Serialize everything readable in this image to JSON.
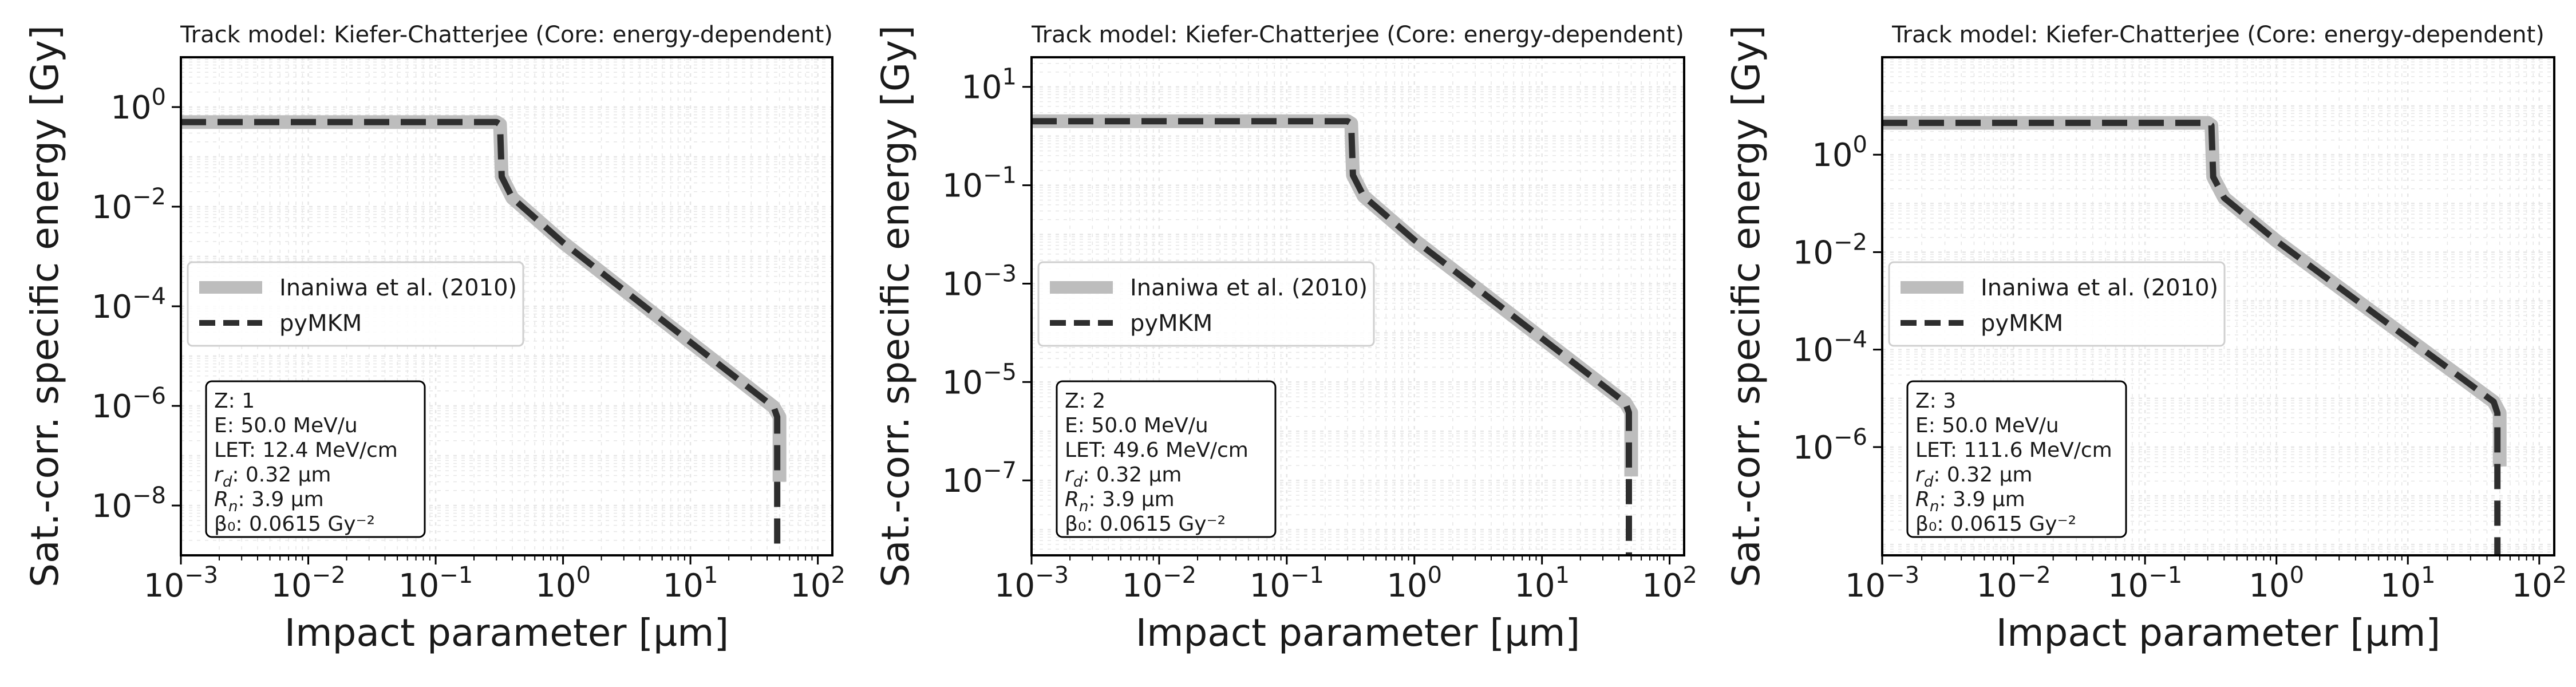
{
  "figure": {
    "xlabel": "Impact parameter [µm]",
    "ylabel": "Sat.-corr. specific energy [Gy]"
  },
  "colors": {
    "reference_line": "#bdbdbd",
    "pymkm_line": "#2e2e2e",
    "grid": "#e6e6e6",
    "axes": "#000000",
    "legend_border": "#cfcfcf",
    "info_border": "#000000"
  },
  "chart_data": [
    {
      "type": "line",
      "title": "Track model: Kiefer-Chatterjee (Core: energy-dependent)",
      "xlabel": "Impact parameter [µm]",
      "ylabel": "Sat.-corr. specific energy [Gy]",
      "xscale": "log",
      "yscale": "log",
      "xlim": [
        0.001,
        130
      ],
      "ylim": [
        1e-09,
        10
      ],
      "xticks": [
        {
          "value": 0.001,
          "base": "10",
          "exp": "−3"
        },
        {
          "value": 0.01,
          "base": "10",
          "exp": "−2"
        },
        {
          "value": 0.1,
          "base": "10",
          "exp": "−1"
        },
        {
          "value": 1,
          "base": "10",
          "exp": "0"
        },
        {
          "value": 10,
          "base": "10",
          "exp": "1"
        },
        {
          "value": 100,
          "base": "10",
          "exp": "2"
        }
      ],
      "yticks": [
        {
          "value": 1,
          "base": "10",
          "exp": "0"
        },
        {
          "value": 0.01,
          "base": "10",
          "exp": "−2"
        },
        {
          "value": 0.0001,
          "base": "10",
          "exp": "−4"
        },
        {
          "value": 1e-06,
          "base": "10",
          "exp": "−6"
        },
        {
          "value": 1e-08,
          "base": "10",
          "exp": "−8"
        }
      ],
      "grid": true,
      "legend_position": "center-left",
      "series": [
        {
          "name": "Inaniwa et al. (2010)",
          "style": "solid",
          "points": [
            [
              0.001,
              0.5
            ],
            [
              0.3,
              0.5
            ],
            [
              0.32,
              0.45
            ],
            [
              0.33,
              0.04
            ],
            [
              0.4,
              0.015
            ],
            [
              1,
              0.0019
            ],
            [
              10,
              1.9e-05
            ],
            [
              45,
              9.5e-07
            ],
            [
              50,
              6e-07
            ],
            [
              50,
              3e-08
            ]
          ]
        },
        {
          "name": "pyMKM",
          "style": "dashed",
          "points": [
            [
              0.001,
              0.5
            ],
            [
              0.3,
              0.5
            ],
            [
              0.32,
              0.45
            ],
            [
              0.33,
              0.04
            ],
            [
              0.4,
              0.015
            ],
            [
              1,
              0.0019
            ],
            [
              10,
              1.9e-05
            ],
            [
              45,
              9.5e-07
            ],
            [
              48,
              6e-07
            ],
            [
              48,
              1e-09
            ]
          ]
        }
      ],
      "annotation": [
        {
          "label": "Z: 1"
        },
        {
          "label": "E: 50.0 MeV/u"
        },
        {
          "label": "LET: 12.4 MeV/cm"
        },
        {
          "sym": "r",
          "sub": "d",
          "rest": ": 0.32 µm"
        },
        {
          "sym": "R",
          "sub": "n",
          "rest": ": 3.9 µm"
        },
        {
          "label": "β₀: 0.0615 Gy⁻²"
        }
      ]
    },
    {
      "type": "line",
      "title": "Track model: Kiefer-Chatterjee (Core: energy-dependent)",
      "xlabel": "Impact parameter [µm]",
      "ylabel": "Sat.-corr. specific energy [Gy]",
      "xscale": "log",
      "yscale": "log",
      "xlim": [
        0.001,
        130
      ],
      "ylim": [
        3e-09,
        40
      ],
      "xticks": [
        {
          "value": 0.001,
          "base": "10",
          "exp": "−3"
        },
        {
          "value": 0.01,
          "base": "10",
          "exp": "−2"
        },
        {
          "value": 0.1,
          "base": "10",
          "exp": "−1"
        },
        {
          "value": 1,
          "base": "10",
          "exp": "0"
        },
        {
          "value": 10,
          "base": "10",
          "exp": "1"
        },
        {
          "value": 100,
          "base": "10",
          "exp": "2"
        }
      ],
      "yticks": [
        {
          "value": 10,
          "base": "10",
          "exp": "1"
        },
        {
          "value": 0.1,
          "base": "10",
          "exp": "−1"
        },
        {
          "value": 0.001,
          "base": "10",
          "exp": "−3"
        },
        {
          "value": 1e-05,
          "base": "10",
          "exp": "−5"
        },
        {
          "value": 1e-07,
          "base": "10",
          "exp": "−7"
        }
      ],
      "grid": true,
      "legend_position": "center-left",
      "series": [
        {
          "name": "Inaniwa et al. (2010)",
          "style": "solid",
          "points": [
            [
              0.001,
              2
            ],
            [
              0.3,
              2
            ],
            [
              0.32,
              1.8
            ],
            [
              0.33,
              0.16
            ],
            [
              0.4,
              0.06
            ],
            [
              1,
              0.0077
            ],
            [
              10,
              7.7e-05
            ],
            [
              45,
              3.8e-06
            ],
            [
              50,
              2.4e-06
            ],
            [
              50,
              1.2e-07
            ]
          ]
        },
        {
          "name": "pyMKM",
          "style": "dashed",
          "points": [
            [
              0.001,
              2
            ],
            [
              0.3,
              2
            ],
            [
              0.32,
              1.8
            ],
            [
              0.33,
              0.16
            ],
            [
              0.4,
              0.06
            ],
            [
              1,
              0.0077
            ],
            [
              10,
              7.7e-05
            ],
            [
              45,
              3.8e-06
            ],
            [
              48,
              2.4e-06
            ],
            [
              48,
              3e-09
            ]
          ]
        }
      ],
      "annotation": [
        {
          "label": "Z: 2"
        },
        {
          "label": "E: 50.0 MeV/u"
        },
        {
          "label": "LET: 49.6 MeV/cm"
        },
        {
          "sym": "r",
          "sub": "d",
          "rest": ": 0.32 µm"
        },
        {
          "sym": "R",
          "sub": "n",
          "rest": ": 3.9 µm"
        },
        {
          "label": "β₀: 0.0615 Gy⁻²"
        }
      ]
    },
    {
      "type": "line",
      "title": "Track model: Kiefer-Chatterjee (Core: energy-dependent)",
      "xlabel": "Impact parameter [µm]",
      "ylabel": "Sat.-corr. specific energy [Gy]",
      "xscale": "log",
      "yscale": "log",
      "xlim": [
        0.001,
        130
      ],
      "ylim": [
        6e-09,
        100
      ],
      "xticks": [
        {
          "value": 0.001,
          "base": "10",
          "exp": "−3"
        },
        {
          "value": 0.01,
          "base": "10",
          "exp": "−2"
        },
        {
          "value": 0.1,
          "base": "10",
          "exp": "−1"
        },
        {
          "value": 1,
          "base": "10",
          "exp": "0"
        },
        {
          "value": 10,
          "base": "10",
          "exp": "1"
        },
        {
          "value": 100,
          "base": "10",
          "exp": "2"
        }
      ],
      "yticks": [
        {
          "value": 1,
          "base": "10",
          "exp": "0"
        },
        {
          "value": 0.01,
          "base": "10",
          "exp": "−2"
        },
        {
          "value": 0.0001,
          "base": "10",
          "exp": "−4"
        },
        {
          "value": 1e-06,
          "base": "10",
          "exp": "−6"
        }
      ],
      "grid": true,
      "legend_position": "center-left",
      "series": [
        {
          "name": "Inaniwa et al. (2010)",
          "style": "solid",
          "points": [
            [
              0.001,
              4.5
            ],
            [
              0.3,
              4.5
            ],
            [
              0.32,
              4.0
            ],
            [
              0.33,
              0.35
            ],
            [
              0.4,
              0.13
            ],
            [
              1,
              0.017
            ],
            [
              10,
              0.00017
            ],
            [
              45,
              8.5e-06
            ],
            [
              50,
              5e-06
            ],
            [
              50,
              4e-07
            ]
          ]
        },
        {
          "name": "pyMKM",
          "style": "dashed",
          "points": [
            [
              0.001,
              4.5
            ],
            [
              0.3,
              4.5
            ],
            [
              0.32,
              4.0
            ],
            [
              0.33,
              0.35
            ],
            [
              0.4,
              0.13
            ],
            [
              1,
              0.017
            ],
            [
              10,
              0.00017
            ],
            [
              45,
              8.5e-06
            ],
            [
              48,
              5e-06
            ],
            [
              48,
              6e-09
            ]
          ]
        }
      ],
      "annotation": [
        {
          "label": "Z: 3"
        },
        {
          "label": "E: 50.0 MeV/u"
        },
        {
          "label": "LET: 111.6 MeV/cm"
        },
        {
          "sym": "r",
          "sub": "d",
          "rest": ": 0.32 µm"
        },
        {
          "sym": "R",
          "sub": "n",
          "rest": ": 3.9 µm"
        },
        {
          "label": "β₀: 0.0615 Gy⁻²"
        }
      ]
    }
  ]
}
